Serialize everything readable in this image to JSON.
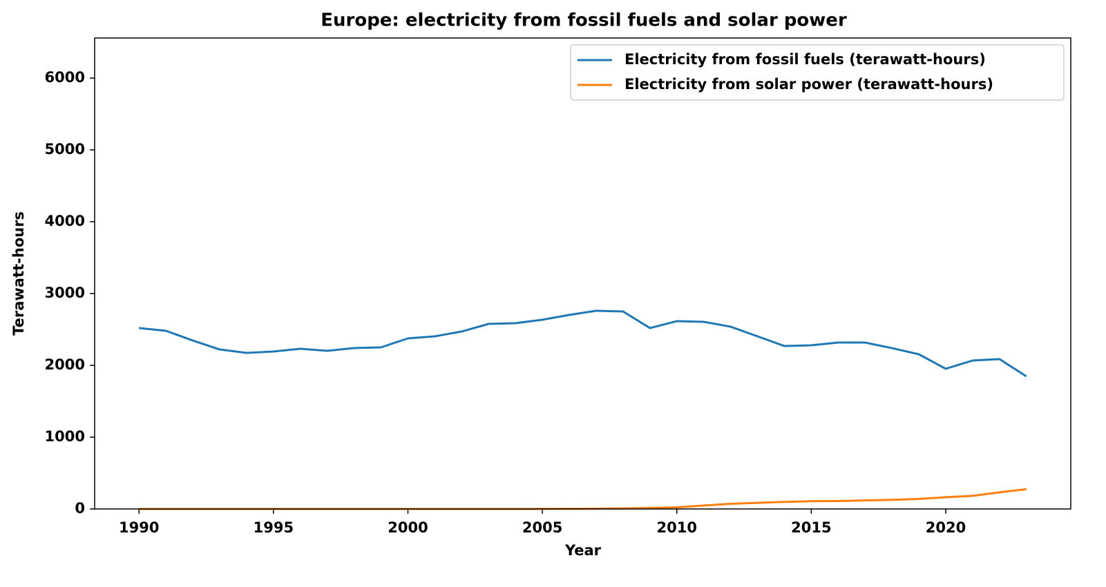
{
  "chart_data": {
    "type": "line",
    "title": "Europe: electricity from fossil fuels and solar power",
    "x_label": "Year",
    "y_label": "Terawatt-hours",
    "x": [
      1990,
      1991,
      1992,
      1993,
      1994,
      1995,
      1996,
      1997,
      1998,
      1999,
      2000,
      2001,
      2002,
      2003,
      2004,
      2005,
      2006,
      2007,
      2008,
      2009,
      2010,
      2011,
      2012,
      2013,
      2014,
      2015,
      2016,
      2017,
      2018,
      2019,
      2020,
      2021,
      2022,
      2023
    ],
    "series": [
      {
        "name": "Electricity from fossil fuels (terawatt-hours)",
        "color": "#1f77b4",
        "values": [
          2519,
          2481,
          2346,
          2221,
          2173,
          2192,
          2231,
          2202,
          2240,
          2250,
          2375,
          2404,
          2471,
          2577,
          2587,
          2635,
          2702,
          2760,
          2750,
          2519,
          2615,
          2606,
          2538,
          2404,
          2269,
          2279,
          2317,
          2317,
          2240,
          2154,
          1952,
          2067,
          2087,
          1846
        ]
      },
      {
        "name": "Electricity from solar power (terawatt-hours)",
        "color": "#ff7f0e",
        "values": [
          0,
          0,
          0,
          0,
          0,
          0,
          0,
          0,
          0,
          0,
          0,
          0,
          0,
          0,
          0,
          1,
          2,
          4,
          8,
          15,
          23,
          48,
          72,
          85,
          98,
          108,
          111,
          119,
          127,
          140,
          163,
          183,
          232,
          275
        ]
      }
    ],
    "xlim": [
      1988.35,
      2024.65
    ],
    "xticks": [
      1990,
      1995,
      2000,
      2005,
      2010,
      2015,
      2020
    ],
    "ylim": [
      0,
      6558
    ],
    "yticks": [
      0,
      1000,
      2000,
      3000,
      4000,
      5000,
      6000
    ],
    "legend": "upper right"
  }
}
